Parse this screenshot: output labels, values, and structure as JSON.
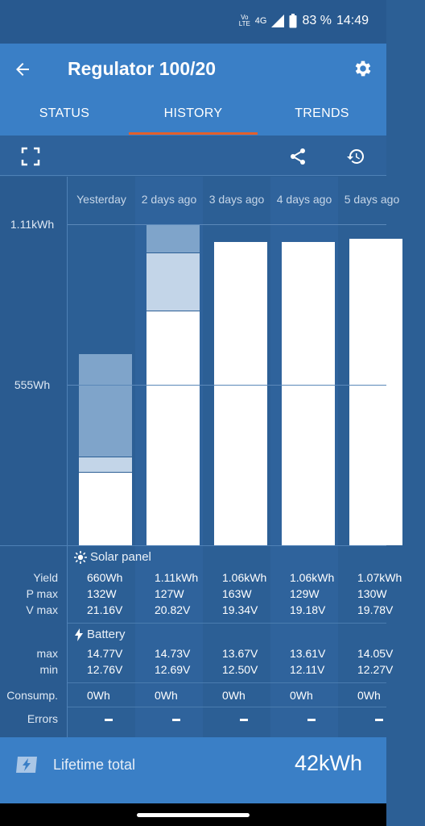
{
  "status_bar": {
    "network": "Vo LTE",
    "signal_label": "4G",
    "battery": "83 %",
    "time": "14:49"
  },
  "app_bar": {
    "title": "Regulator 100/20",
    "back_icon": "arrow-back-icon",
    "settings_icon": "gear-icon"
  },
  "tabs": [
    {
      "label": "STATUS",
      "active": false
    },
    {
      "label": "HISTORY",
      "active": true
    },
    {
      "label": "TRENDS",
      "active": false
    }
  ],
  "toolbar": {
    "fullscreen_icon": "fullscreen-icon",
    "share_icon": "share-icon",
    "history_icon": "history-icon"
  },
  "chart_data": {
    "type": "bar",
    "y_ticks": [
      "1.11kWh",
      "555Wh"
    ],
    "ylim_wh": [
      0,
      1110
    ],
    "categories": [
      "Yesterday",
      "2 days ago",
      "3 days ago",
      "4 days ago",
      "5 days ago"
    ],
    "series": [
      {
        "name": "",
        "values": [
          250,
          810,
          1050,
          1050,
          1060
        ]
      },
      {
        "name": "",
        "values": [
          55,
          200,
          0,
          0,
          0
        ]
      },
      {
        "name": "",
        "values": [
          355,
          100,
          0,
          0,
          0
        ]
      }
    ],
    "colors": [
      "#ffffff",
      "#c3d5e8",
      "#7fa4ca"
    ]
  },
  "table": {
    "solar_title": "Solar panel",
    "battery_title": "Battery",
    "row_labels": {
      "yield": "Yield",
      "pmax": "P max",
      "vmax": "V max",
      "bmax": "max",
      "bmin": "min",
      "consump": "Consump.",
      "errors": "Errors"
    },
    "days": [
      {
        "yield": "660Wh",
        "pmax": "132W",
        "vmax": "21.16V",
        "bmax": "14.77V",
        "bmin": "12.76V",
        "consump": "0Wh",
        "errors": "–"
      },
      {
        "yield": "1.11kWh",
        "pmax": "127W",
        "vmax": "20.82V",
        "bmax": "14.73V",
        "bmin": "12.69V",
        "consump": "0Wh",
        "errors": "–"
      },
      {
        "yield": "1.06kWh",
        "pmax": "163W",
        "vmax": "19.34V",
        "bmax": "13.67V",
        "bmin": "12.50V",
        "consump": "0Wh",
        "errors": "–"
      },
      {
        "yield": "1.06kWh",
        "pmax": "129W",
        "vmax": "19.18V",
        "bmax": "13.61V",
        "bmin": "12.11V",
        "consump": "0Wh",
        "errors": "–"
      },
      {
        "yield": "1.07kWh",
        "pmax": "130W",
        "vmax": "19.78V",
        "bmax": "14.05V",
        "bmin": "12.27V",
        "consump": "0Wh",
        "errors": "–"
      }
    ]
  },
  "footer": {
    "label": "Lifetime total",
    "value": "42kWh"
  }
}
